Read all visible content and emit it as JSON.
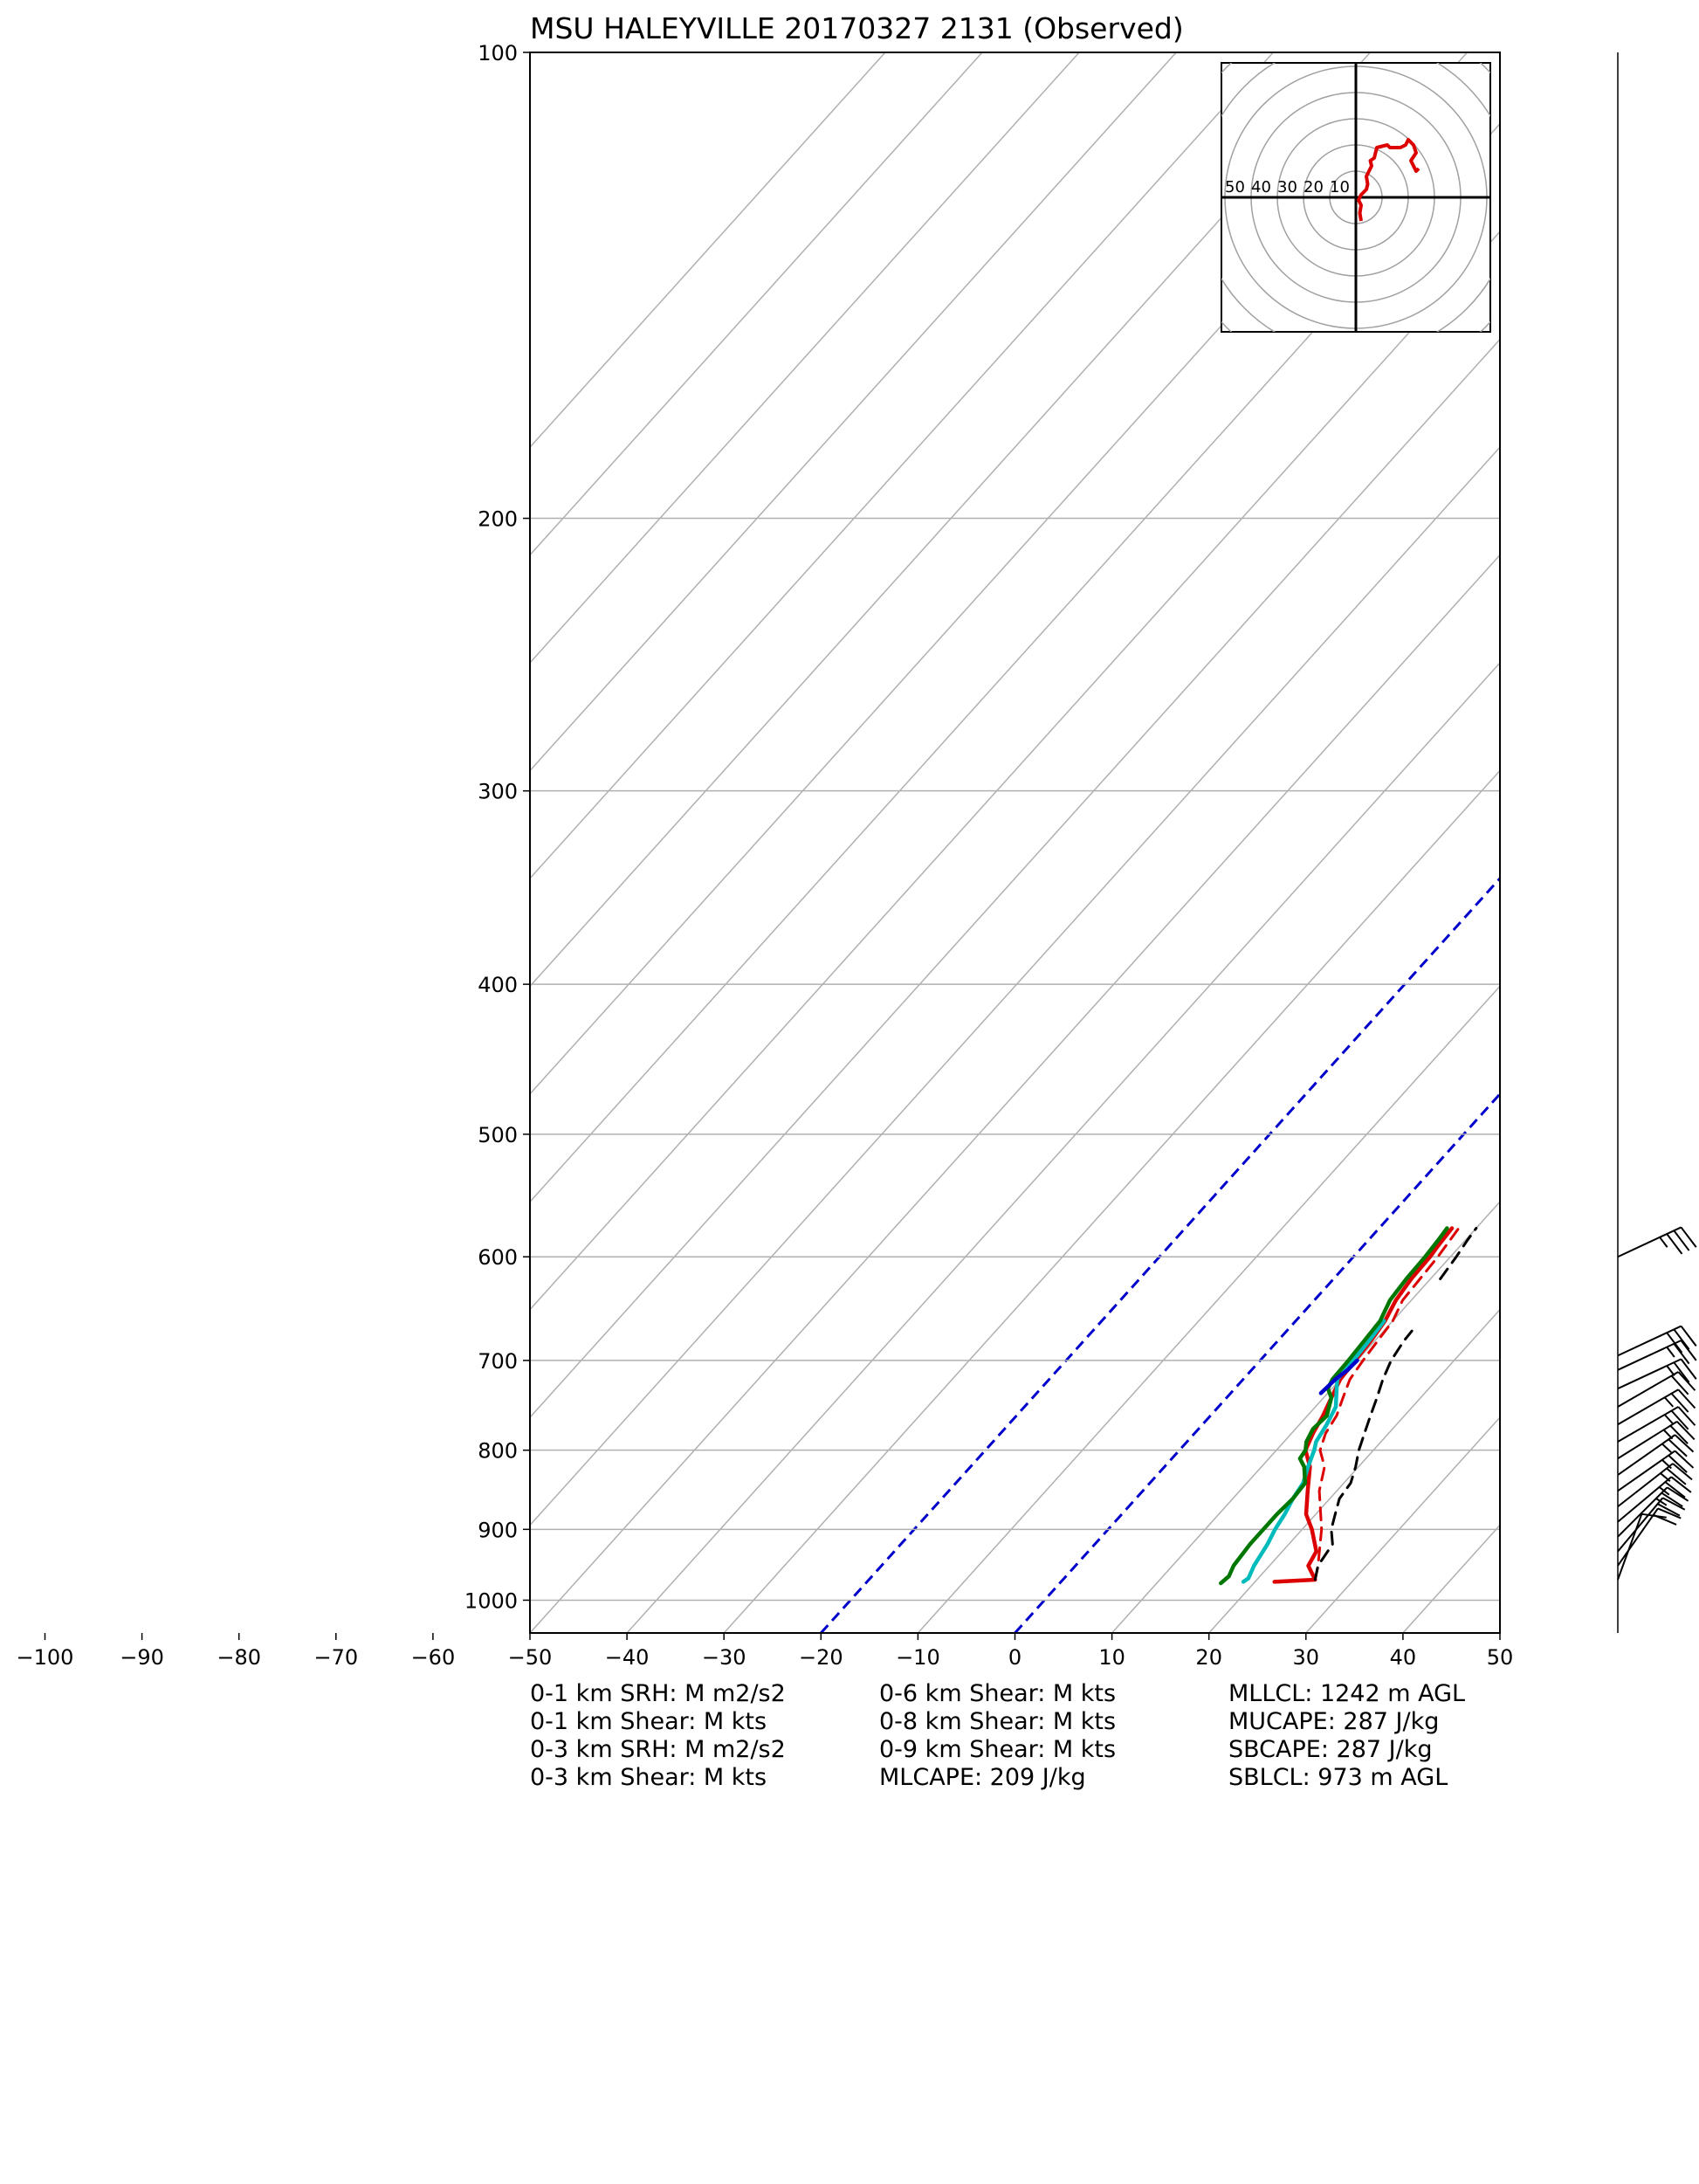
{
  "title": "MSU HALEYVILLE 20170327 2131   (Observed)",
  "stats": {
    "col1": [
      "0-1 km SRH: M m2/s2",
      "0-1 km Shear: M kts",
      "0-3 km SRH: M m2/s2",
      "0-3 km Shear: M kts"
    ],
    "col2": [
      "0-6 km Shear: M kts",
      "0-8 km Shear: M kts",
      "0-9 km Shear: M kts",
      "MLCAPE: 209 J/kg"
    ],
    "col3": [
      "MLLCL: 1242 m AGL",
      "MUCAPE: 287 J/kg",
      "SBCAPE: 287 J/kg",
      "SBLCL: 973 m AGL"
    ]
  },
  "chart_data": {
    "type": "line",
    "x_ticks": [
      "−100",
      "−90",
      "−80",
      "−70",
      "−60",
      "−50",
      "−40",
      "−30",
      "−20",
      "−10",
      "0",
      "10",
      "20",
      "30",
      "40",
      "50"
    ],
    "y_ticks": [
      "100",
      "200",
      "300",
      "400",
      "500",
      "600",
      "700",
      "800",
      "900",
      "1000"
    ],
    "xlim": [
      -50,
      50
    ],
    "ylim": [
      1050,
      100
    ],
    "y_scale": "log",
    "grid": true,
    "isotherms": [
      -100,
      -90,
      -80,
      -70,
      -60,
      -50,
      -40,
      -30,
      -20,
      -10,
      0,
      10,
      20,
      30,
      40,
      50
    ],
    "highlight_isotherms": {
      "values": [
        -20,
        0
      ],
      "color": "#0000cc"
    },
    "series": [
      {
        "color": "#dd0000",
        "style": "solid",
        "points": [
          [
            973,
            22
          ],
          [
            970,
            26
          ],
          [
            950,
            24
          ],
          [
            930,
            23.5
          ],
          [
            900,
            21
          ],
          [
            880,
            19
          ],
          [
            850,
            17
          ],
          [
            820,
            15
          ],
          [
            800,
            13
          ],
          [
            780,
            12.2
          ],
          [
            760,
            11.6
          ],
          [
            740,
            10.8
          ],
          [
            720,
            10
          ],
          [
            700,
            9.8
          ],
          [
            680,
            9.6
          ],
          [
            660,
            9.2
          ],
          [
            640,
            8.4
          ],
          [
            620,
            8
          ],
          [
            600,
            7.9
          ],
          [
            590,
            7.7
          ],
          [
            575,
            7.5
          ]
        ]
      },
      {
        "color": "#dd0000",
        "style": "dashed",
        "points": [
          [
            970,
            26
          ],
          [
            950,
            25
          ],
          [
            900,
            22
          ],
          [
            850,
            18.2
          ],
          [
            820,
            16.5
          ],
          [
            800,
            14.5
          ],
          [
            780,
            13.5
          ],
          [
            760,
            13
          ],
          [
            740,
            12
          ],
          [
            720,
            11
          ],
          [
            700,
            10.6
          ],
          [
            680,
            10.3
          ],
          [
            660,
            10
          ],
          [
            640,
            9.1
          ],
          [
            620,
            8.9
          ],
          [
            600,
            8.7
          ],
          [
            575,
            8.2
          ]
        ]
      },
      {
        "color": "#00bbbb",
        "style": "solid",
        "points": [
          [
            973,
            18.8
          ],
          [
            968,
            19
          ],
          [
            950,
            18.4
          ],
          [
            920,
            17.8
          ],
          [
            900,
            17.2
          ],
          [
            880,
            16.8
          ],
          [
            860,
            16.2
          ],
          [
            840,
            15.8
          ],
          [
            820,
            14.8
          ],
          [
            800,
            13.9
          ],
          [
            790,
            13.3
          ],
          [
            770,
            12.8
          ],
          [
            750,
            12.1
          ],
          [
            730,
            10.5
          ],
          [
            720,
            9.7
          ],
          [
            700,
            9.6
          ],
          [
            680,
            9.4
          ],
          [
            660,
            9.1
          ]
        ]
      },
      {
        "color": "#007700",
        "style": "solid",
        "points": [
          [
            975,
            16.6
          ],
          [
            965,
            16.8
          ],
          [
            950,
            16.3
          ],
          [
            920,
            16
          ],
          [
            900,
            16
          ],
          [
            880,
            16
          ],
          [
            860,
            16.2
          ],
          [
            840,
            16
          ],
          [
            820,
            14.4
          ],
          [
            810,
            13.2
          ],
          [
            800,
            13
          ],
          [
            790,
            12.3
          ],
          [
            775,
            11.8
          ],
          [
            760,
            12
          ],
          [
            740,
            10.8
          ],
          [
            730,
            9.6
          ],
          [
            720,
            9.2
          ],
          [
            700,
            9.1
          ],
          [
            680,
            8.9
          ],
          [
            660,
            8.7
          ],
          [
            640,
            7.8
          ],
          [
            620,
            7.5
          ],
          [
            600,
            7.4
          ],
          [
            585,
            7.2
          ],
          [
            575,
            7
          ]
        ]
      },
      {
        "color": "#0000cc",
        "style": "solid",
        "points": [
          [
            735,
            9.3
          ],
          [
            720,
            9.5
          ],
          [
            710,
            9.9
          ],
          [
            700,
            10
          ]
        ]
      },
      {
        "color": "#000000",
        "style": "dashed",
        "points": [
          [
            970,
            26
          ],
          [
            950,
            25
          ],
          [
            920,
            24.5
          ],
          [
            900,
            23
          ],
          [
            880,
            22
          ],
          [
            860,
            21
          ],
          [
            840,
            20.7
          ],
          [
            820,
            19.7
          ],
          [
            800,
            18.5
          ],
          [
            780,
            17.5
          ],
          [
            760,
            16.5
          ],
          [
            740,
            15.5
          ],
          [
            720,
            14.4
          ],
          [
            700,
            13.5
          ],
          [
            680,
            13
          ],
          [
            670,
            12.9
          ]
        ]
      },
      {
        "color": "#000000",
        "style": "dashed",
        "points": [
          [
            620,
            11
          ],
          [
            600,
            10.6
          ],
          [
            585,
            10.2
          ],
          [
            575,
            10
          ]
        ]
      }
    ],
    "hodograph": {
      "ring_labels": [
        "50",
        "40",
        "30",
        "20",
        "10"
      ],
      "ring_spacing_kt": 10,
      "trace_uv_kt": [
        [
          2,
          -9
        ],
        [
          1.5,
          -6
        ],
        [
          2,
          -3
        ],
        [
          1,
          -1
        ],
        [
          2,
          1
        ],
        [
          4,
          3
        ],
        [
          4.5,
          5
        ],
        [
          4,
          8
        ],
        [
          5,
          10
        ],
        [
          6,
          12
        ],
        [
          5.5,
          14
        ],
        [
          7,
          15
        ],
        [
          7.5,
          17
        ],
        [
          8,
          19
        ],
        [
          12,
          20
        ],
        [
          13,
          19
        ],
        [
          15,
          19
        ],
        [
          17,
          19
        ],
        [
          19,
          20
        ],
        [
          20,
          22
        ],
        [
          22,
          20
        ],
        [
          23,
          17
        ],
        [
          21,
          14
        ],
        [
          23,
          10
        ],
        [
          24,
          11
        ]
      ]
    },
    "wind_barbs": [
      {
        "p": 970,
        "dir": 200,
        "spd": 10
      },
      {
        "p": 950,
        "dir": 215,
        "spd": 20
      },
      {
        "p": 930,
        "dir": 220,
        "spd": 20
      },
      {
        "p": 910,
        "dir": 225,
        "spd": 25
      },
      {
        "p": 890,
        "dir": 230,
        "spd": 25
      },
      {
        "p": 870,
        "dir": 232,
        "spd": 25
      },
      {
        "p": 850,
        "dir": 235,
        "spd": 25
      },
      {
        "p": 830,
        "dir": 235,
        "spd": 25
      },
      {
        "p": 810,
        "dir": 238,
        "spd": 25
      },
      {
        "p": 790,
        "dir": 240,
        "spd": 25
      },
      {
        "p": 770,
        "dir": 240,
        "spd": 25
      },
      {
        "p": 750,
        "dir": 240,
        "spd": 20
      },
      {
        "p": 730,
        "dir": 245,
        "spd": 25
      },
      {
        "p": 710,
        "dir": 245,
        "spd": 25
      },
      {
        "p": 695,
        "dir": 245,
        "spd": 30
      },
      {
        "p": 600,
        "dir": 245,
        "spd": 35
      }
    ]
  }
}
